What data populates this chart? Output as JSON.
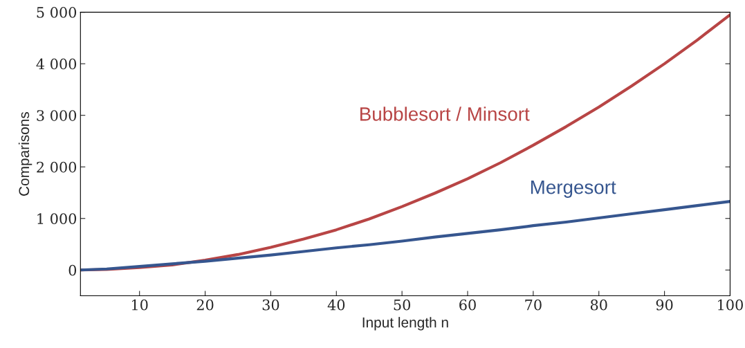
{
  "chart_data": {
    "type": "line",
    "xlabel": "Input length n",
    "ylabel": "Comparisons",
    "xlim": [
      1,
      100
    ],
    "ylim": [
      -500,
      5000
    ],
    "xticks": [
      10,
      20,
      30,
      40,
      50,
      60,
      70,
      80,
      90,
      100
    ],
    "yticks": [
      0,
      {
        "value": 1000,
        "label": "1 000"
      },
      {
        "value": 2000,
        "label": "2 000"
      },
      {
        "value": 3000,
        "label": "3 000"
      },
      {
        "value": 4000,
        "label": "4 000"
      },
      {
        "value": 5000,
        "label": "5 000"
      }
    ],
    "grid": false,
    "legend": false,
    "marker": "none",
    "line_style": "solid",
    "x": [
      1,
      5,
      10,
      15,
      20,
      25,
      30,
      35,
      40,
      45,
      50,
      55,
      60,
      65,
      70,
      75,
      80,
      85,
      90,
      95,
      100
    ],
    "series": [
      {
        "name": "Bubblesort / Minsort",
        "color": "#b84545",
        "values": [
          0,
          10,
          50,
          100,
          190,
          300,
          440,
          600,
          780,
          990,
          1230,
          1490,
          1770,
          2080,
          2420,
          2780,
          3160,
          3570,
          4000,
          4460,
          4950
        ]
      },
      {
        "name": "Mergesort",
        "color": "#36568f",
        "values": [
          0,
          20,
          70,
          120,
          170,
          230,
          290,
          360,
          430,
          490,
          560,
          640,
          710,
          780,
          860,
          930,
          1010,
          1090,
          1170,
          1250,
          1330
        ]
      }
    ]
  }
}
